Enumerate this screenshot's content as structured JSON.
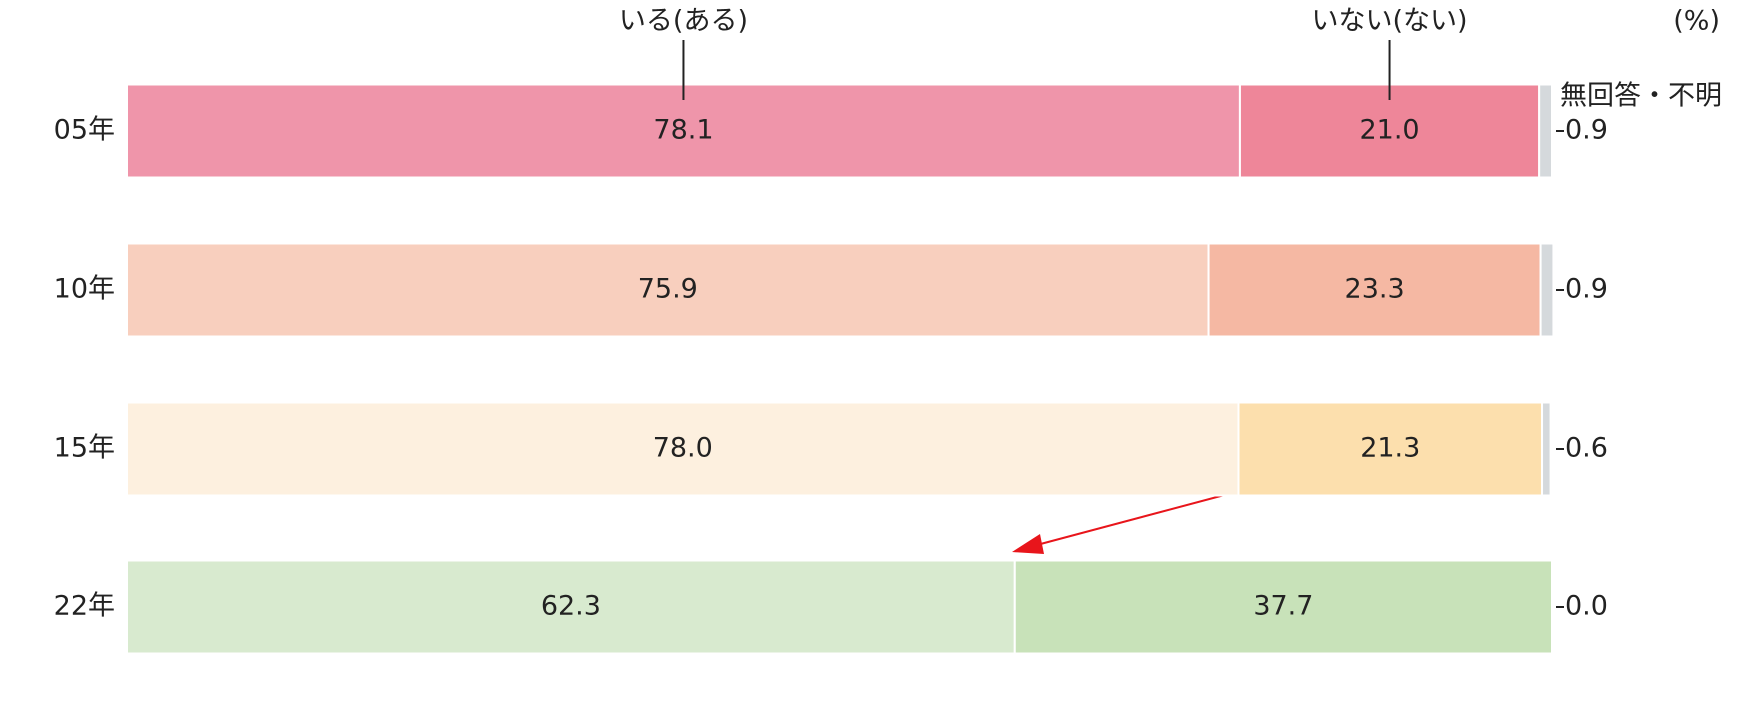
{
  "chart_data": {
    "type": "stacked-bar",
    "unit": "(%)",
    "categories": [
      "05年",
      "10年",
      "15年",
      "22年"
    ],
    "xlim": [
      0,
      100
    ],
    "series": [
      {
        "name": "いる(ある)",
        "values": [
          78.1,
          75.9,
          78.0,
          62.3
        ],
        "value_labels": [
          "78.1",
          "75.9",
          "78.0",
          "62.3"
        ],
        "colors": [
          "#ef95aa",
          "#f8cfbe",
          "#fdf0df",
          "#d8eacf"
        ]
      },
      {
        "name": "いない(ない)",
        "values": [
          21.0,
          23.3,
          21.3,
          37.7
        ],
        "value_labels": [
          "21.0",
          "23.3",
          "21.3",
          "37.7"
        ],
        "colors": [
          "#ee8699",
          "#f5b8a3",
          "#fcdfad",
          "#c8e2b9"
        ]
      },
      {
        "name": "無回答・不明",
        "values": [
          0.9,
          0.9,
          0.6,
          0.0
        ],
        "value_labels": [
          "0.9",
          "0.9",
          "0.6",
          "0.0"
        ],
        "colors": [
          "#d5d9dc",
          "#d5d9dc",
          "#d5d9dc",
          "#d5d9dc"
        ]
      }
    ]
  }
}
